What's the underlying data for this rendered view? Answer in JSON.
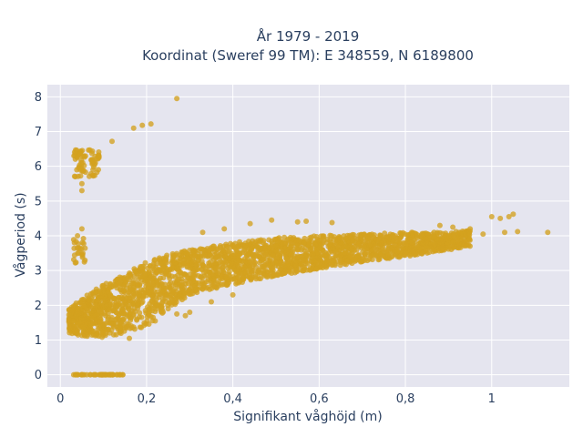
{
  "chart_data": {
    "type": "scatter",
    "title_line1": "År 1979 - 2019",
    "title_line2": "Koordinat (Sweref 99 TM): E 348559, N 6189800",
    "xlabel": "Signifikant våghöjd (m)",
    "ylabel": "Vågperiod (s)",
    "xlim": [
      -0.03,
      1.18
    ],
    "ylim": [
      -0.35,
      8.35
    ],
    "x_ticks": [
      0,
      0.2,
      0.4,
      0.6,
      0.8,
      1
    ],
    "x_tick_labels": [
      "0",
      "0,2",
      "0,4",
      "0,6",
      "0,8",
      "1"
    ],
    "y_ticks": [
      0,
      1,
      2,
      3,
      4,
      5,
      6,
      7,
      8
    ],
    "y_tick_labels": [
      "0",
      "1",
      "2",
      "3",
      "4",
      "5",
      "6",
      "7",
      "8"
    ],
    "grid": true,
    "marker_color": "#d4a21f",
    "background_color": "#e5e5ef",
    "outliers": [
      [
        0.27,
        7.95
      ],
      [
        0.21,
        7.22
      ],
      [
        0.19,
        7.18
      ],
      [
        0.17,
        7.1
      ],
      [
        0.12,
        6.72
      ],
      [
        0.05,
        5.3
      ],
      [
        0.05,
        5.5
      ],
      [
        0.05,
        4.2
      ],
      [
        0.04,
        4.0
      ],
      [
        1.13,
        4.1
      ],
      [
        1.06,
        4.12
      ],
      [
        1.03,
        4.1
      ],
      [
        1.02,
        4.5
      ],
      [
        1.0,
        4.55
      ],
      [
        1.04,
        4.55
      ],
      [
        1.05,
        4.62
      ],
      [
        0.95,
        4.2
      ],
      [
        0.91,
        4.25
      ],
      [
        0.88,
        4.3
      ],
      [
        0.98,
        4.05
      ],
      [
        0.55,
        4.4
      ],
      [
        0.57,
        4.42
      ],
      [
        0.63,
        4.38
      ],
      [
        0.49,
        4.45
      ],
      [
        0.44,
        4.35
      ],
      [
        0.38,
        4.2
      ],
      [
        0.33,
        4.1
      ],
      [
        0.16,
        1.05
      ],
      [
        0.22,
        1.55
      ],
      [
        0.29,
        1.7
      ],
      [
        0.27,
        1.75
      ],
      [
        0.3,
        1.8
      ],
      [
        0.35,
        2.1
      ],
      [
        0.4,
        2.3
      ],
      [
        0.25,
        1.9
      ]
    ],
    "zero_period_range": [
      0.03,
      0.15
    ],
    "cluster_low_t": {
      "x_range": [
        0.03,
        0.09
      ],
      "y_range": [
        5.7,
        6.5
      ]
    },
    "cluster_mid": {
      "x_range": [
        0.03,
        0.06
      ],
      "y_range": [
        3.2,
        3.95
      ]
    },
    "main_band": [
      {
        "x": 0.02,
        "low": 1.2,
        "high": 1.9
      },
      {
        "x": 0.05,
        "low": 1.1,
        "high": 2.2
      },
      {
        "x": 0.1,
        "low": 1.05,
        "high": 2.6
      },
      {
        "x": 0.15,
        "low": 1.2,
        "high": 2.9
      },
      {
        "x": 0.2,
        "low": 1.4,
        "high": 3.25
      },
      {
        "x": 0.25,
        "low": 1.9,
        "high": 3.45
      },
      {
        "x": 0.3,
        "low": 2.3,
        "high": 3.6
      },
      {
        "x": 0.4,
        "low": 2.6,
        "high": 3.8
      },
      {
        "x": 0.5,
        "low": 2.85,
        "high": 3.95
      },
      {
        "x": 0.6,
        "low": 3.05,
        "high": 4.0
      },
      {
        "x": 0.7,
        "low": 3.25,
        "high": 4.05
      },
      {
        "x": 0.8,
        "low": 3.4,
        "high": 4.1
      },
      {
        "x": 0.88,
        "low": 3.55,
        "high": 4.1
      },
      {
        "x": 0.95,
        "low": 3.7,
        "high": 4.15
      }
    ]
  }
}
